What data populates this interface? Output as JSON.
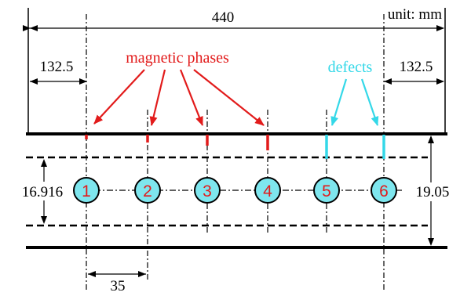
{
  "units_label": "unit: mm",
  "dimensions": {
    "total_length": "440",
    "left_offset": "132.5",
    "right_offset": "132.5",
    "inner_band": "16.916",
    "plate_thickness": "19.05",
    "spacing": "35"
  },
  "labels": {
    "magnetic_phases": "magnetic phases",
    "defects": "defects"
  },
  "sensors": [
    "1",
    "2",
    "3",
    "4",
    "5",
    "6"
  ],
  "colors": {
    "magnetic_phase": "#e21b1b",
    "defect": "#34d8e8",
    "sensor_fill": "#7ee6ee",
    "sensor_number": "#e21b1b",
    "lines": "#000000"
  }
}
